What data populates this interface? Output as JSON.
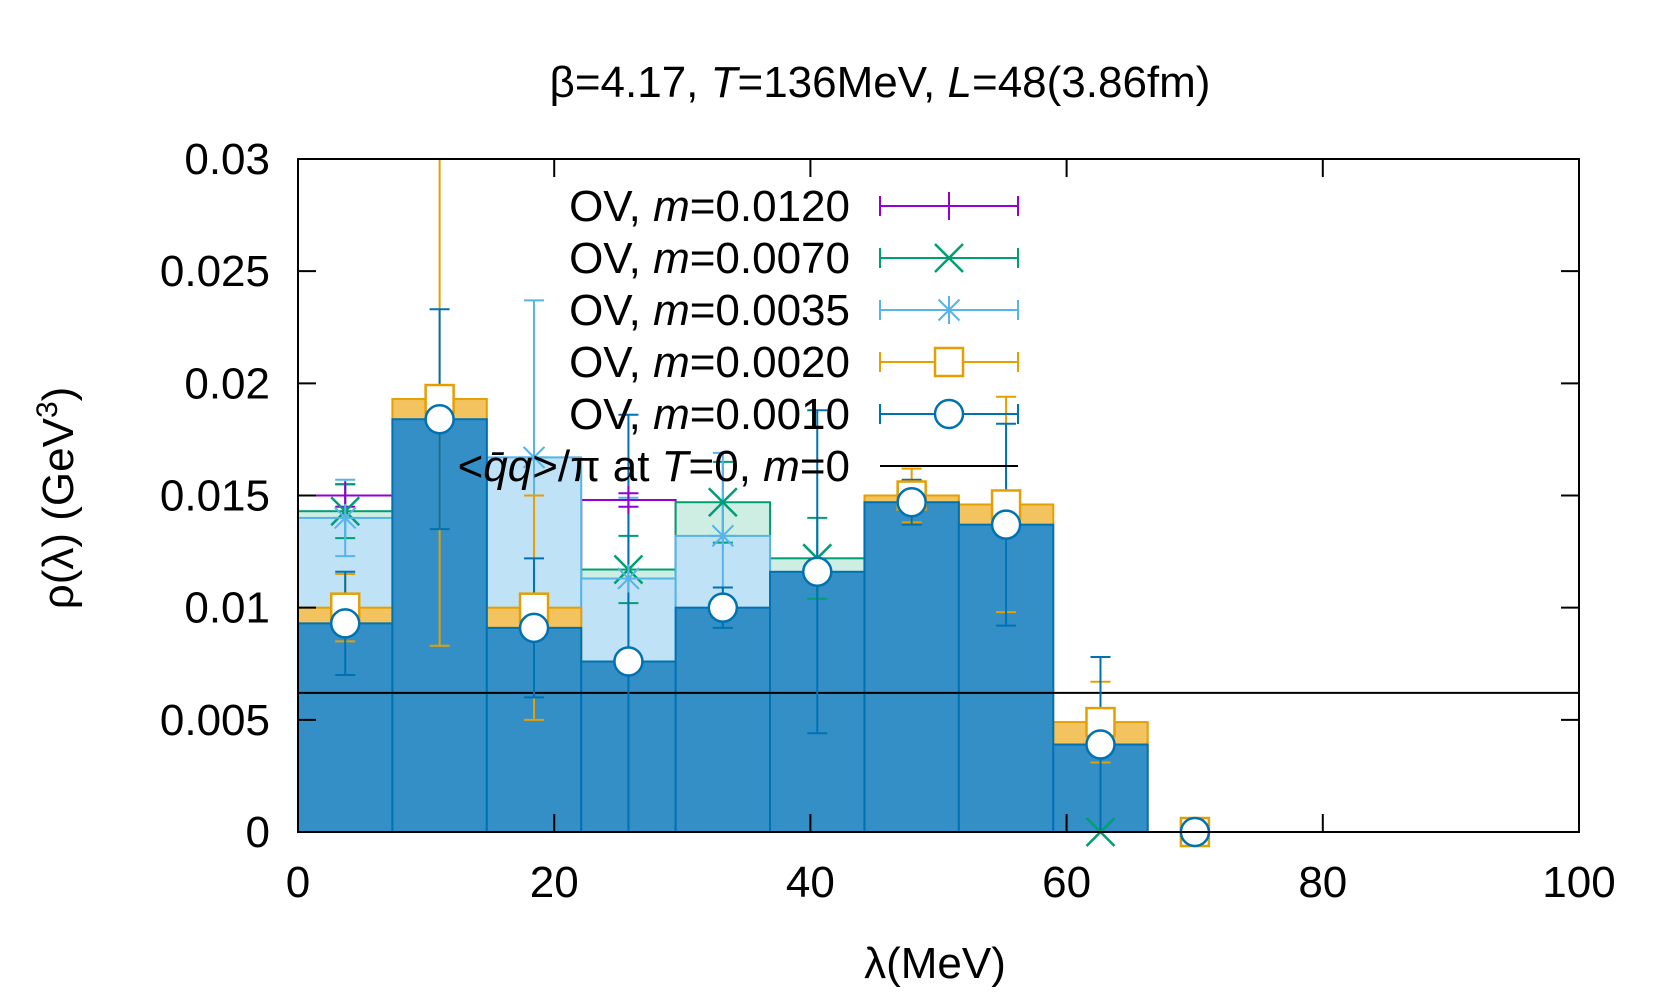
{
  "chart_data": {
    "type": "bar",
    "title": {
      "prefix": "β=4.17, ",
      "T_sym": "T",
      "T_val": "=136MeV, ",
      "L_sym": "L",
      "L_val": "=48(3.86fm)"
    },
    "xlabel": "λ(MeV)",
    "ylabel": {
      "main": "ρ(λ) (GeV",
      "sup": "3",
      "close": ")"
    },
    "xlim": [
      0,
      100
    ],
    "ylim": [
      0,
      0.03
    ],
    "xticks": [
      "0",
      "20",
      "40",
      "60",
      "80",
      "100"
    ],
    "yticks": [
      "0",
      "0.005",
      "0.01",
      "0.015",
      "0.02",
      "0.025",
      "0.03"
    ],
    "xtick_values": [
      0,
      20,
      40,
      60,
      80,
      100
    ],
    "ytick_values": [
      0,
      0.005,
      0.01,
      0.015,
      0.02,
      0.025,
      0.03
    ],
    "bin_width": 7.37,
    "bin_centers": [
      3.685,
      11.055,
      18.425,
      25.795,
      33.165,
      40.535,
      47.905,
      55.275,
      62.645,
      70.015
    ],
    "series": [
      {
        "name_prefix": "OV, ",
        "name_sym": "m",
        "name_val": "=0.0120",
        "color": "#9400d3",
        "marker": "plus",
        "values": [
          0.015,
          null,
          null,
          0.0148,
          null,
          null,
          null,
          null,
          null,
          null
        ],
        "errors": [
          0.0005,
          null,
          null,
          0.0003,
          null,
          null,
          null,
          null,
          null,
          null
        ]
      },
      {
        "name_prefix": "OV, ",
        "name_sym": "m",
        "name_val": "=0.0070",
        "color": "#009e73",
        "marker": "cross",
        "values": [
          0.0143,
          null,
          null,
          0.0117,
          0.0147,
          0.0122,
          null,
          null,
          0.0,
          null
        ],
        "errors": [
          0.0012,
          null,
          null,
          0.0015,
          0.0018,
          0.0018,
          null,
          null,
          0,
          null
        ]
      },
      {
        "name_prefix": "OV, ",
        "name_sym": "m",
        "name_val": "=0.0035",
        "color": "#56b4e9",
        "marker": "star",
        "values": [
          0.014,
          null,
          0.0167,
          0.0113,
          0.0132,
          null,
          null,
          null,
          null,
          null
        ],
        "errors": [
          0.0017,
          null,
          0.007,
          0.0036,
          0.0037,
          null,
          null,
          null,
          null,
          null
        ]
      },
      {
        "name_prefix": "OV, ",
        "name_sym": "m",
        "name_val": "=0.0020",
        "color": "#e69f00",
        "marker": "square",
        "values": [
          0.01,
          0.0193,
          0.01,
          null,
          null,
          null,
          0.015,
          0.0146,
          0.0049,
          0.0
        ],
        "errors": [
          0.0015,
          0.011,
          0.005,
          null,
          null,
          null,
          0.0012,
          0.0048,
          0.0018,
          0
        ]
      },
      {
        "name_prefix": "OV, ",
        "name_sym": "m",
        "name_val": "=0.0010",
        "color": "#0072b2",
        "marker": "circle",
        "values": [
          0.0093,
          0.0184,
          0.0091,
          0.0076,
          0.01,
          0.0116,
          0.0147,
          0.0137,
          0.0039,
          0.0
        ],
        "errors": [
          0.0023,
          0.0049,
          0.0031,
          0.011,
          0.0009,
          0.0072,
          0.001,
          0.0045,
          0.0039,
          0
        ]
      }
    ],
    "reference_line": {
      "value": 0.0062,
      "color": "#000000",
      "label": {
        "a": "<",
        "b": "q̄q",
        "c": ">/π at ",
        "d": "T",
        "e": "=0, ",
        "f": "m",
        "g": "=0"
      }
    }
  }
}
